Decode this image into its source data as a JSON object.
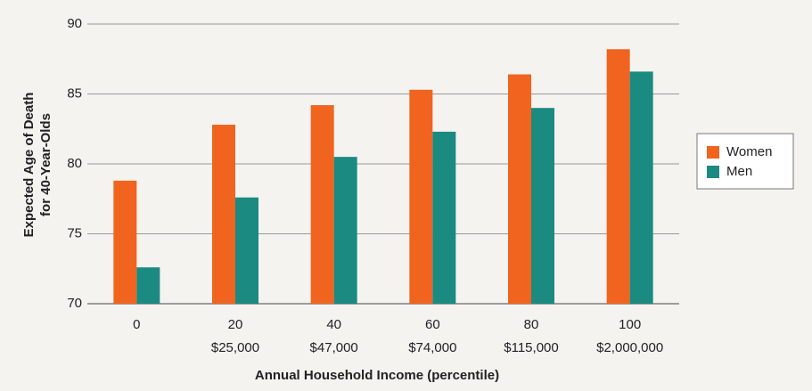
{
  "chart_data": {
    "type": "bar",
    "y_label_lines": [
      "Expected Age of Death",
      "for 40-Year-Olds"
    ],
    "x_label": "Annual Household Income (percentile)",
    "categories": [
      "0",
      "20",
      "40",
      "60",
      "80",
      "100"
    ],
    "income_labels": [
      null,
      "$25,000",
      "$47,000",
      "$74,000",
      "$115,000",
      "$2,000,000"
    ],
    "series": [
      {
        "name": "Women",
        "color": "#f0641f",
        "values": [
          78.8,
          82.8,
          84.2,
          85.3,
          86.4,
          88.2
        ]
      },
      {
        "name": "Men",
        "color": "#1b8a80",
        "values": [
          72.6,
          77.6,
          80.5,
          82.3,
          84.0,
          86.6
        ]
      }
    ],
    "ylim": [
      70,
      90
    ],
    "yticks": [
      70,
      75,
      80,
      85,
      90
    ],
    "grid": true,
    "legend": "right"
  }
}
